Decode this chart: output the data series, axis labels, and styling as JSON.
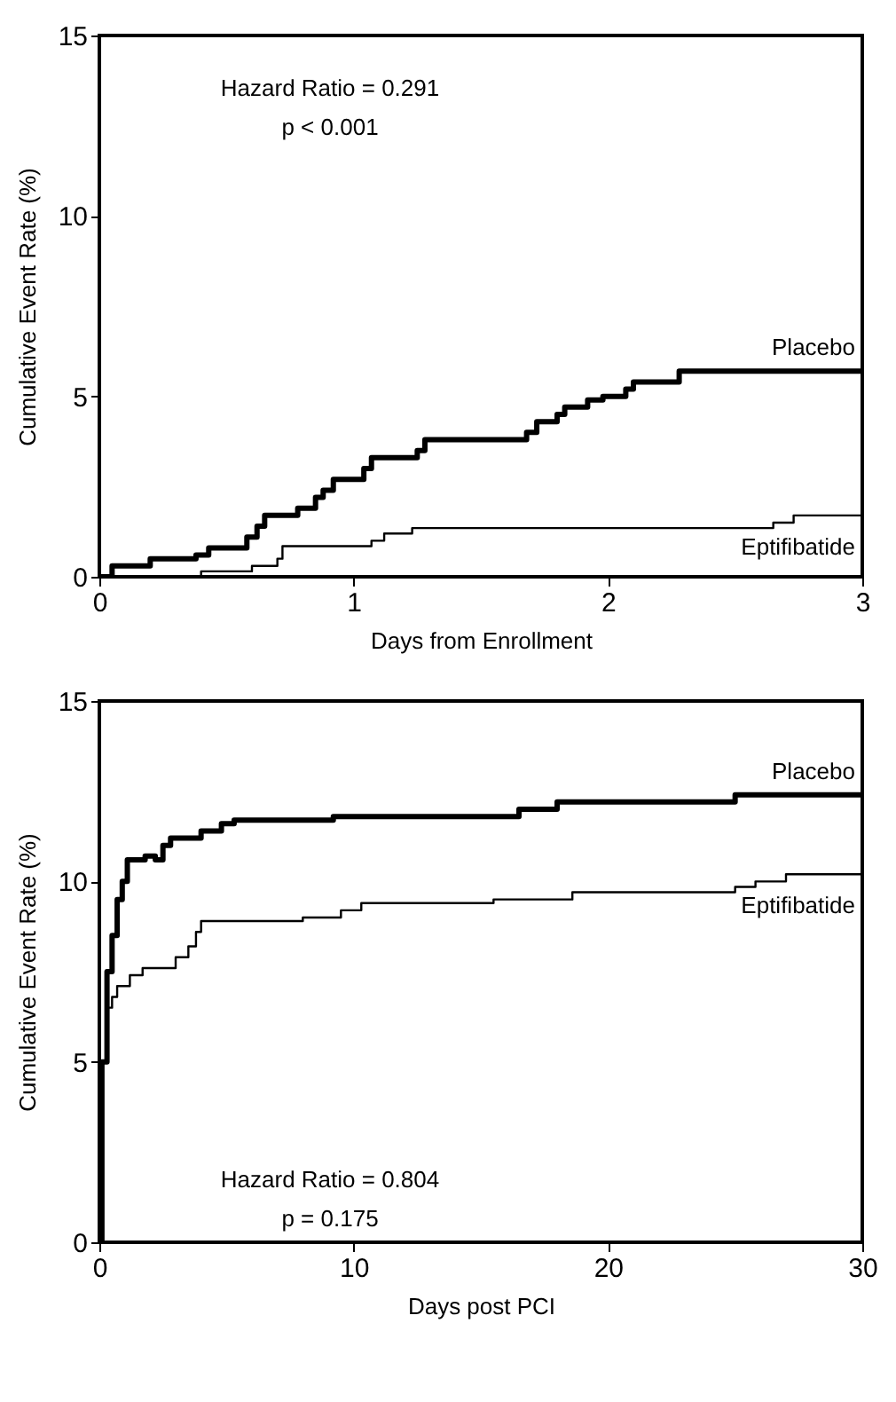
{
  "chart_data": [
    {
      "type": "step",
      "xlabel": "Days from Enrollment",
      "ylabel": "Cumulative Event Rate (%)",
      "annotations": [
        "Hazard Ratio = 0.291",
        "p < 0.001"
      ],
      "xlim": [
        0,
        3
      ],
      "ylim": [
        0,
        15
      ],
      "xticks": [
        0,
        1,
        2,
        3
      ],
      "yticks": [
        0,
        5,
        10,
        15
      ],
      "legend": false,
      "grid": false,
      "series": [
        {
          "name": "Placebo",
          "color": "#000000",
          "x": [
            0,
            0.05,
            0.2,
            0.38,
            0.43,
            0.58,
            0.62,
            0.65,
            0.78,
            0.85,
            0.88,
            0.92,
            1.04,
            1.07,
            1.25,
            1.28,
            1.68,
            1.72,
            1.8,
            1.83,
            1.92,
            1.98,
            2.07,
            2.1,
            2.28,
            3
          ],
          "values": [
            0,
            0.3,
            0.5,
            0.6,
            0.8,
            1.1,
            1.4,
            1.7,
            1.9,
            2.2,
            2.4,
            2.7,
            3.0,
            3.3,
            3.5,
            3.8,
            4.0,
            4.3,
            4.5,
            4.7,
            4.9,
            5.0,
            5.2,
            5.4,
            5.7,
            5.7
          ]
        },
        {
          "name": "Eptifibatide",
          "color": "#000000",
          "x": [
            0,
            0.4,
            0.6,
            0.7,
            0.72,
            1.07,
            1.12,
            1.23,
            2.65,
            2.73,
            3
          ],
          "values": [
            0,
            0.15,
            0.3,
            0.5,
            0.85,
            1.0,
            1.2,
            1.35,
            1.5,
            1.7,
            1.7
          ]
        }
      ]
    },
    {
      "type": "step",
      "xlabel": "Days post PCI",
      "ylabel": "Cumulative Event Rate (%)",
      "annotations": [
        "Hazard Ratio = 0.804",
        "p = 0.175"
      ],
      "xlim": [
        0,
        30
      ],
      "ylim": [
        0,
        15
      ],
      "xticks": [
        0,
        10,
        20,
        30
      ],
      "yticks": [
        0,
        5,
        10,
        15
      ],
      "legend": false,
      "grid": false,
      "series": [
        {
          "name": "Placebo",
          "color": "#000000",
          "x": [
            0,
            0.1,
            0.3,
            0.5,
            0.7,
            0.9,
            1.1,
            1.8,
            2.2,
            2.5,
            2.8,
            4,
            4.8,
            5.3,
            9.2,
            16.5,
            18,
            25,
            30
          ],
          "values": [
            0,
            5,
            7.5,
            8.5,
            9.5,
            10,
            10.6,
            10.7,
            10.6,
            11.0,
            11.2,
            11.4,
            11.6,
            11.7,
            11.8,
            12.0,
            12.2,
            12.4,
            12.4
          ]
        },
        {
          "name": "Eptifibatide",
          "color": "#000000",
          "x": [
            0,
            0.1,
            0.3,
            0.5,
            0.7,
            1.2,
            1.7,
            3,
            3.5,
            3.8,
            4,
            8,
            9.5,
            10.3,
            15.5,
            18.6,
            25,
            25.8,
            27,
            30
          ],
          "values": [
            0,
            5,
            6.5,
            6.8,
            7.1,
            7.4,
            7.6,
            7.9,
            8.2,
            8.6,
            8.9,
            9.0,
            9.2,
            9.4,
            9.5,
            9.7,
            9.85,
            10.0,
            10.2,
            10.2
          ]
        }
      ]
    }
  ]
}
